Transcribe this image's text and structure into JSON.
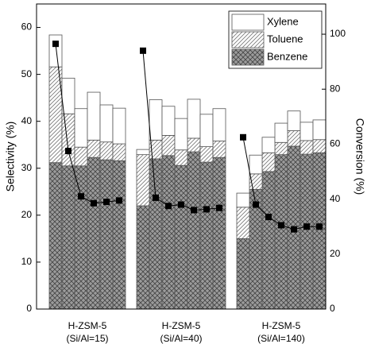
{
  "chart_data": {
    "type": "stacked-bar-line",
    "ylabel": "Selectivity (%)",
    "y2label": "Conversion (%)",
    "ylim": [
      0,
      65
    ],
    "yticks": [
      0,
      10,
      20,
      30,
      40,
      50,
      60
    ],
    "y2lim": [
      0,
      111
    ],
    "y2ticks": [
      0,
      20,
      40,
      60,
      80,
      100
    ],
    "group_labels": [
      [
        "H-ZSM-5",
        "(Si/Al=15)"
      ],
      [
        "H-ZSM-5",
        "(Si/Al=40)"
      ],
      [
        "H-ZSM-5",
        "(Si/Al=140)"
      ]
    ],
    "series": [
      {
        "name": "Benzene",
        "pattern": "crosshatch",
        "color": "#8a8a8a",
        "values": [
          [
            31.2,
            30.5,
            30.5,
            32.3,
            31.8,
            31.6
          ],
          [
            22.0,
            32.0,
            32.7,
            30.6,
            33.5,
            31.3,
            32.3
          ],
          [
            15.0,
            25.5,
            29.3,
            32.9,
            34.7,
            33.0,
            33.3
          ]
        ]
      },
      {
        "name": "Toluene",
        "pattern": "diagonal",
        "color": "#9a9a9a",
        "values": [
          [
            20.4,
            11.1,
            4.0,
            3.7,
            3.8,
            3.6
          ],
          [
            10.9,
            4.0,
            4.3,
            3.3,
            2.9,
            3.3,
            3.5
          ],
          [
            6.7,
            3.3,
            4.0,
            2.6,
            3.3,
            2.9,
            2.8
          ]
        ]
      },
      {
        "name": "Xylene",
        "pattern": "none",
        "color": "#ffffff",
        "values": [
          [
            6.8,
            7.6,
            8.2,
            10.2,
            7.9,
            7.6
          ],
          [
            1.1,
            8.6,
            6.2,
            6.7,
            8.3,
            6.9,
            6.9
          ],
          [
            3.0,
            4.0,
            3.3,
            4.1,
            4.2,
            3.9,
            4.2
          ]
        ]
      }
    ],
    "conversion": {
      "axis": "y2",
      "color": "#000000",
      "values": [
        [
          96.5,
          57.5,
          41,
          38.5,
          39,
          39.5
        ],
        [
          94,
          40.5,
          37.5,
          38,
          36,
          36.3,
          36.8
        ],
        [
          62.5,
          38,
          33.5,
          30.5,
          29,
          30,
          30
        ]
      ]
    }
  }
}
